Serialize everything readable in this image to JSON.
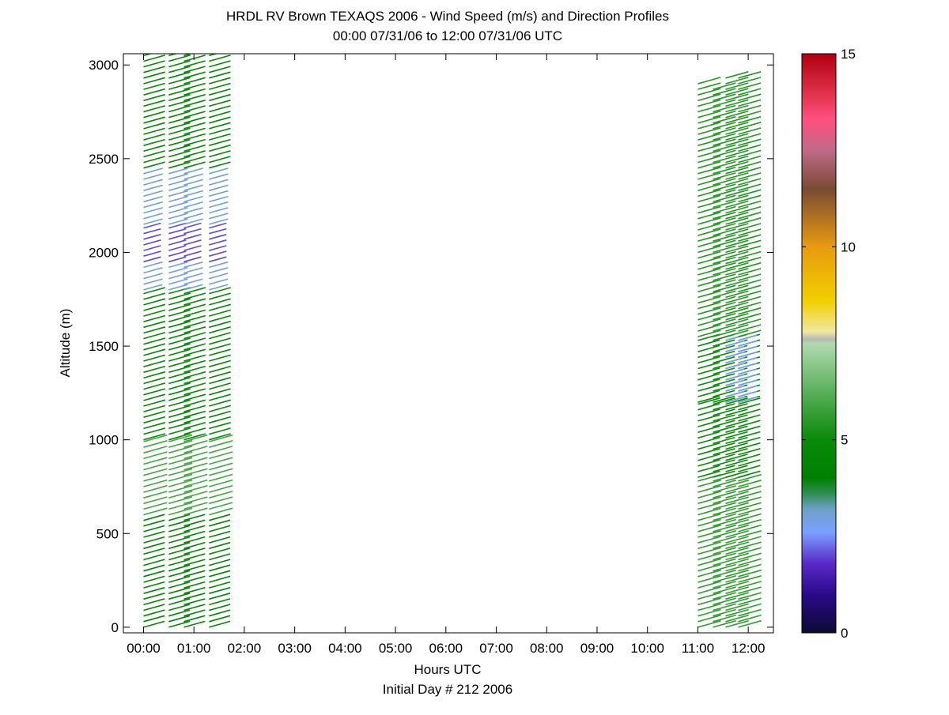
{
  "chart_data": {
    "type": "scatter",
    "title": "HRDL RV Brown TEXAQS 2006 - Wind Speed (m/s) and Direction Profiles",
    "subtitle": "00:00 07/31/06 to 12:00 07/31/06  UTC",
    "xlabel": "Hours UTC",
    "xlabel2": "Initial Day # 212  2006",
    "ylabel": "Altitude (m)",
    "xlim": [
      -0.4,
      12.5
    ],
    "ylim": [
      -30,
      3060
    ],
    "x_ticks": [
      0,
      1,
      2,
      3,
      4,
      5,
      6,
      7,
      8,
      9,
      10,
      11,
      12
    ],
    "x_tick_labels": [
      "00:00",
      "01:00",
      "02:00",
      "03:00",
      "04:00",
      "05:00",
      "06:00",
      "07:00",
      "08:00",
      "09:00",
      "10:00",
      "11:00",
      "12:00"
    ],
    "y_ticks": [
      0,
      500,
      1000,
      1500,
      2000,
      2500,
      3000
    ],
    "y_tick_labels": [
      "0",
      "500",
      "1000",
      "1500",
      "2000",
      "2500",
      "3000"
    ],
    "colorbar": {
      "range": [
        0,
        15
      ],
      "ticks": [
        0,
        5,
        10,
        15
      ],
      "tick_labels": [
        "0",
        "5",
        "10",
        "15"
      ],
      "stops": [
        {
          "v": 0.0,
          "color": "#0b0b33"
        },
        {
          "v": 1.0,
          "color": "#2a0a8a"
        },
        {
          "v": 1.8,
          "color": "#5a2ac8"
        },
        {
          "v": 2.6,
          "color": "#7aa0ff"
        },
        {
          "v": 3.2,
          "color": "#6fa0c8"
        },
        {
          "v": 3.6,
          "color": "#2f8f55"
        },
        {
          "v": 4.0,
          "color": "#008000"
        },
        {
          "v": 5.0,
          "color": "#0a8a0a"
        },
        {
          "v": 6.0,
          "color": "#4aa84a"
        },
        {
          "v": 7.5,
          "color": "#b0dab0"
        },
        {
          "v": 7.6,
          "color": "#b8b8b8"
        },
        {
          "v": 7.8,
          "color": "#f0e8a0"
        },
        {
          "v": 8.6,
          "color": "#f2cf00"
        },
        {
          "v": 10.0,
          "color": "#e89a10"
        },
        {
          "v": 11.5,
          "color": "#7a4a33"
        },
        {
          "v": 12.5,
          "color": "#c06a88"
        },
        {
          "v": 13.3,
          "color": "#ff4f80"
        },
        {
          "v": 14.0,
          "color": "#e0304a"
        },
        {
          "v": 15.0,
          "color": "#b00010"
        }
      ]
    },
    "profile_times": [
      0.0,
      0.5,
      0.8,
      1.3,
      11.0,
      11.3,
      11.55,
      11.8
    ],
    "profile_tops": [
      3060,
      3060,
      3060,
      3060,
      2910,
      2880,
      2940,
      2950
    ],
    "altitude_step": 30,
    "speed_segments": [
      {
        "times": [
          0.0,
          0.5,
          0.8,
          1.3
        ],
        "from": 0,
        "to": 600,
        "speed": 4.4
      },
      {
        "times": [
          0.0,
          0.5,
          0.8,
          1.3
        ],
        "from": 600,
        "to": 1000,
        "speed": 5.9
      },
      {
        "times": [
          0.0,
          0.5,
          0.8,
          1.3
        ],
        "from": 1000,
        "to": 1800,
        "speed": 4.7
      },
      {
        "times": [
          0.0,
          0.5,
          0.8,
          1.3
        ],
        "from": 1800,
        "to": 1950,
        "speed": 3.0
      },
      {
        "times": [
          0.0,
          0.5,
          0.8,
          1.3
        ],
        "from": 1950,
        "to": 2150,
        "speed": 2.0
      },
      {
        "times": [
          0.0,
          0.5,
          0.8,
          1.3
        ],
        "from": 2150,
        "to": 2450,
        "speed": 3.1
      },
      {
        "times": [
          0.0,
          0.5,
          0.8,
          1.3
        ],
        "from": 2450,
        "to": 3060,
        "speed": 4.6
      },
      {
        "times": [
          11.0,
          11.3,
          11.55,
          11.8
        ],
        "from": 0,
        "to": 800,
        "speed": 5.6
      },
      {
        "times": [
          11.0,
          11.3,
          11.55,
          11.8
        ],
        "from": 800,
        "to": 1200,
        "speed": 5.0
      },
      {
        "times": [
          11.0,
          11.3,
          11.55,
          11.8
        ],
        "from": 1200,
        "to": 1550,
        "speed": 4.8
      },
      {
        "times": [
          11.55,
          11.8
        ],
        "from": 1200,
        "to": 1550,
        "speed": 2.9
      },
      {
        "times": [
          11.0,
          11.3,
          11.55,
          11.8
        ],
        "from": 1550,
        "to": 2950,
        "speed": 5.4
      }
    ]
  }
}
